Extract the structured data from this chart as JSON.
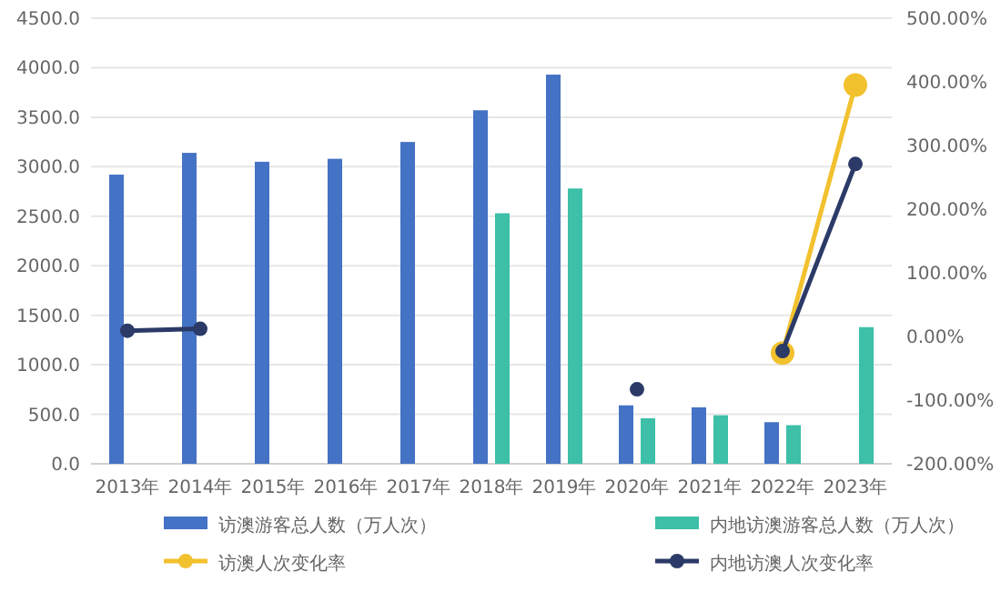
{
  "chart_data": {
    "type": "bar",
    "categories": [
      "2013年",
      "2014年",
      "2015年",
      "2016年",
      "2017年",
      "2018年",
      "2019年",
      "2020年",
      "2021年",
      "2022年",
      "2023年"
    ],
    "series": [
      {
        "name": "访澳游客总人数（万人次）",
        "color": "#4472c4",
        "values": [
          2920,
          3140,
          3050,
          3080,
          3250,
          3570,
          3930,
          590,
          570,
          420,
          null
        ]
      },
      {
        "name": "内地访澳游客总人数（万人次）",
        "color": "#3dbfa8",
        "values": [
          null,
          null,
          null,
          null,
          null,
          2530,
          2780,
          460,
          490,
          390,
          1380
        ]
      },
      {
        "name": "访澳人次变化率",
        "type": "line",
        "axis": "y2",
        "color": "#f2c12e",
        "values": [
          null,
          null,
          null,
          null,
          null,
          null,
          null,
          null,
          null,
          -26,
          395
        ]
      },
      {
        "name": "内地访澳人次变化率",
        "type": "line",
        "axis": "y2",
        "color": "#2b3a67",
        "values": [
          9,
          12,
          null,
          null,
          null,
          null,
          null,
          -83,
          null,
          -23,
          271
        ]
      }
    ],
    "ylim": [
      0,
      4500
    ],
    "yticks": [
      {
        "value": 0,
        "label": "0.0"
      },
      {
        "value": 500,
        "label": "500.0"
      },
      {
        "value": 1000,
        "label": "1000.0"
      },
      {
        "value": 1500,
        "label": "1500.0"
      },
      {
        "value": 2000,
        "label": "2000.0"
      },
      {
        "value": 2500,
        "label": "2500.0"
      },
      {
        "value": 3000,
        "label": "3000.0"
      },
      {
        "value": 3500,
        "label": "3500.0"
      },
      {
        "value": 4000,
        "label": "4000.0"
      },
      {
        "value": 4500,
        "label": "4500.0"
      }
    ],
    "y2lim": [
      -200,
      500
    ],
    "y2ticks": [
      {
        "value": -200,
        "label": "-200.00%"
      },
      {
        "value": -100,
        "label": "-100.00%"
      },
      {
        "value": 0,
        "label": "0.00%"
      },
      {
        "value": 100,
        "label": "100.00%"
      },
      {
        "value": 200,
        "label": "200.00%"
      },
      {
        "value": 300,
        "label": "300.00%"
      },
      {
        "value": 400,
        "label": "400.00%"
      },
      {
        "value": 500,
        "label": "500.00%"
      }
    ],
    "grid": "y",
    "legend": "bottom",
    "marker": "circle"
  }
}
